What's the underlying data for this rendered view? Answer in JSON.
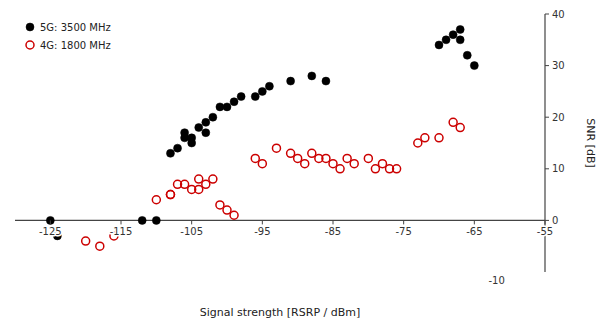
{
  "chart_data": {
    "type": "scatter",
    "xlabel": "Signal strength [RSRP / dBm]",
    "ylabel": "SNR [dB]",
    "series": [
      {
        "name": "5G: 3500 MHz",
        "color": "#000000",
        "marker": "circle",
        "x": [
          -125,
          -124,
          -112,
          -110,
          -108,
          -107,
          -106,
          -106,
          -105,
          -105,
          -104,
          -103,
          -103,
          -102,
          -101,
          -100,
          -99,
          -98,
          -96,
          -95,
          -94,
          -91,
          -88,
          -86,
          -70,
          -69,
          -68,
          -67,
          -67,
          -66,
          -65
        ],
        "values": [
          0,
          -3,
          0,
          0,
          13,
          14,
          16,
          17,
          15,
          16,
          18,
          19,
          17,
          20,
          22,
          22,
          23,
          24,
          24,
          25,
          26,
          27,
          28,
          27,
          34,
          35,
          36,
          35,
          37,
          32,
          30
        ]
      },
      {
        "name": "4G: 1800 MHz",
        "color": "#cc0000",
        "marker": "open-circle",
        "x": [
          -120,
          -118,
          -116,
          -110,
          -108,
          -108,
          -107,
          -106,
          -105,
          -104,
          -104,
          -103,
          -102,
          -101,
          -100,
          -99,
          -96,
          -95,
          -93,
          -91,
          -90,
          -89,
          -88,
          -87,
          -86,
          -85,
          -84,
          -83,
          -82,
          -80,
          -79,
          -78,
          -77,
          -76,
          -73,
          -72,
          -70,
          -68,
          -67
        ],
        "values": [
          -4,
          -5,
          -3,
          4,
          5,
          5,
          7,
          7,
          6,
          8,
          6,
          7,
          8,
          3,
          2,
          1,
          12,
          11,
          14,
          13,
          12,
          11,
          13,
          12,
          12,
          11,
          10,
          12,
          11,
          12,
          10,
          11,
          10,
          10,
          15,
          16,
          16,
          19,
          18
        ]
      }
    ],
    "xlim": [
      -130,
      -55
    ],
    "ylim": [
      -10,
      40
    ],
    "xticks": [
      -125,
      -115,
      -105,
      -95,
      -85,
      -75,
      -65,
      -55
    ],
    "yticks": [
      0,
      10,
      20,
      30,
      40
    ],
    "grid": false,
    "legend": "upper-left",
    "annotations": [
      {
        "text": "-10",
        "x": -63,
        "y": -10
      }
    ]
  }
}
